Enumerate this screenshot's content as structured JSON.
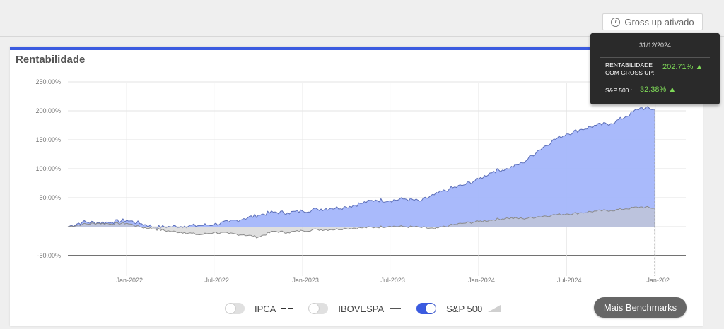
{
  "header": {
    "gross_up_label": "Gross up ativado"
  },
  "card": {
    "title": "Rentabilidade"
  },
  "tooltip": {
    "date": "31/12/2024",
    "row1_label_line1": "RENTABILIDADE",
    "row1_label_line2": "COM GROSS UP:",
    "row1_value": "202.71% ▲",
    "row2_label": "S&P 500 :",
    "row2_value": "32.38% ▲"
  },
  "legend": {
    "items": [
      {
        "label": "IPCA",
        "enabled": false
      },
      {
        "label": "IBOVESPA",
        "enabled": false
      },
      {
        "label": "S&P 500",
        "enabled": true
      }
    ]
  },
  "more_button": {
    "label": "Mais Benchmarks"
  },
  "colors": {
    "accent": "#3b5be0",
    "portfolio_fill": "#a4b6fb",
    "portfolio_line": "#5b6eb8",
    "benchmark_fill": "#c9c9c9",
    "benchmark_line": "#8a8a8a",
    "tooltip_value": "#7ed957"
  },
  "chart_data": {
    "type": "area",
    "title": "Rentabilidade",
    "y_ticks": [
      "250.00%",
      "200.00%",
      "150.00%",
      "100.00%",
      "50.00%",
      "-50.00%"
    ],
    "x_ticks": [
      "Jan-2022",
      "Jul-2022",
      "Jan-2023",
      "Jul-2023",
      "Jan-2024",
      "Jul-2024",
      "Jan-202"
    ],
    "ylim": [
      -50,
      250
    ],
    "grid": true,
    "legend_position": "bottom",
    "x_dates": [
      "2021-09-01",
      "2021-10-01",
      "2021-11-01",
      "2021-12-01",
      "2022-01-01",
      "2022-02-01",
      "2022-03-01",
      "2022-04-01",
      "2022-05-01",
      "2022-06-01",
      "2022-07-01",
      "2022-08-01",
      "2022-09-01",
      "2022-10-01",
      "2022-11-01",
      "2022-12-01",
      "2023-01-01",
      "2023-02-01",
      "2023-03-01",
      "2023-04-01",
      "2023-05-01",
      "2023-06-01",
      "2023-07-01",
      "2023-08-01",
      "2023-09-01",
      "2023-10-01",
      "2023-11-01",
      "2023-12-01",
      "2024-01-01",
      "2024-02-01",
      "2024-03-01",
      "2024-04-01",
      "2024-05-01",
      "2024-06-01",
      "2024-07-01",
      "2024-08-01",
      "2024-09-01",
      "2024-10-01",
      "2024-11-01",
      "2024-12-01",
      "2024-12-31"
    ],
    "series": [
      {
        "name": "RENTABILIDADE COM GROSS UP",
        "values": [
          0,
          8,
          7,
          8,
          11,
          5,
          -1,
          0,
          1,
          2,
          4,
          8,
          14,
          20,
          25,
          24,
          27,
          30,
          32,
          34,
          40,
          46,
          45,
          48,
          44,
          55,
          65,
          72,
          82,
          96,
          100,
          110,
          130,
          148,
          160,
          168,
          175,
          178,
          190,
          205,
          203
        ]
      },
      {
        "name": "S&P 500",
        "values": [
          0,
          4,
          6,
          5,
          6,
          -1,
          -4,
          -8,
          -10,
          -14,
          -10,
          -12,
          -14,
          -18,
          -8,
          -10,
          -7,
          -5,
          -5,
          -3,
          -2,
          -1,
          1,
          0,
          -1,
          -4,
          2,
          6,
          9,
          12,
          15,
          14,
          17,
          20,
          22,
          24,
          27,
          28,
          31,
          34,
          32
        ]
      }
    ]
  }
}
